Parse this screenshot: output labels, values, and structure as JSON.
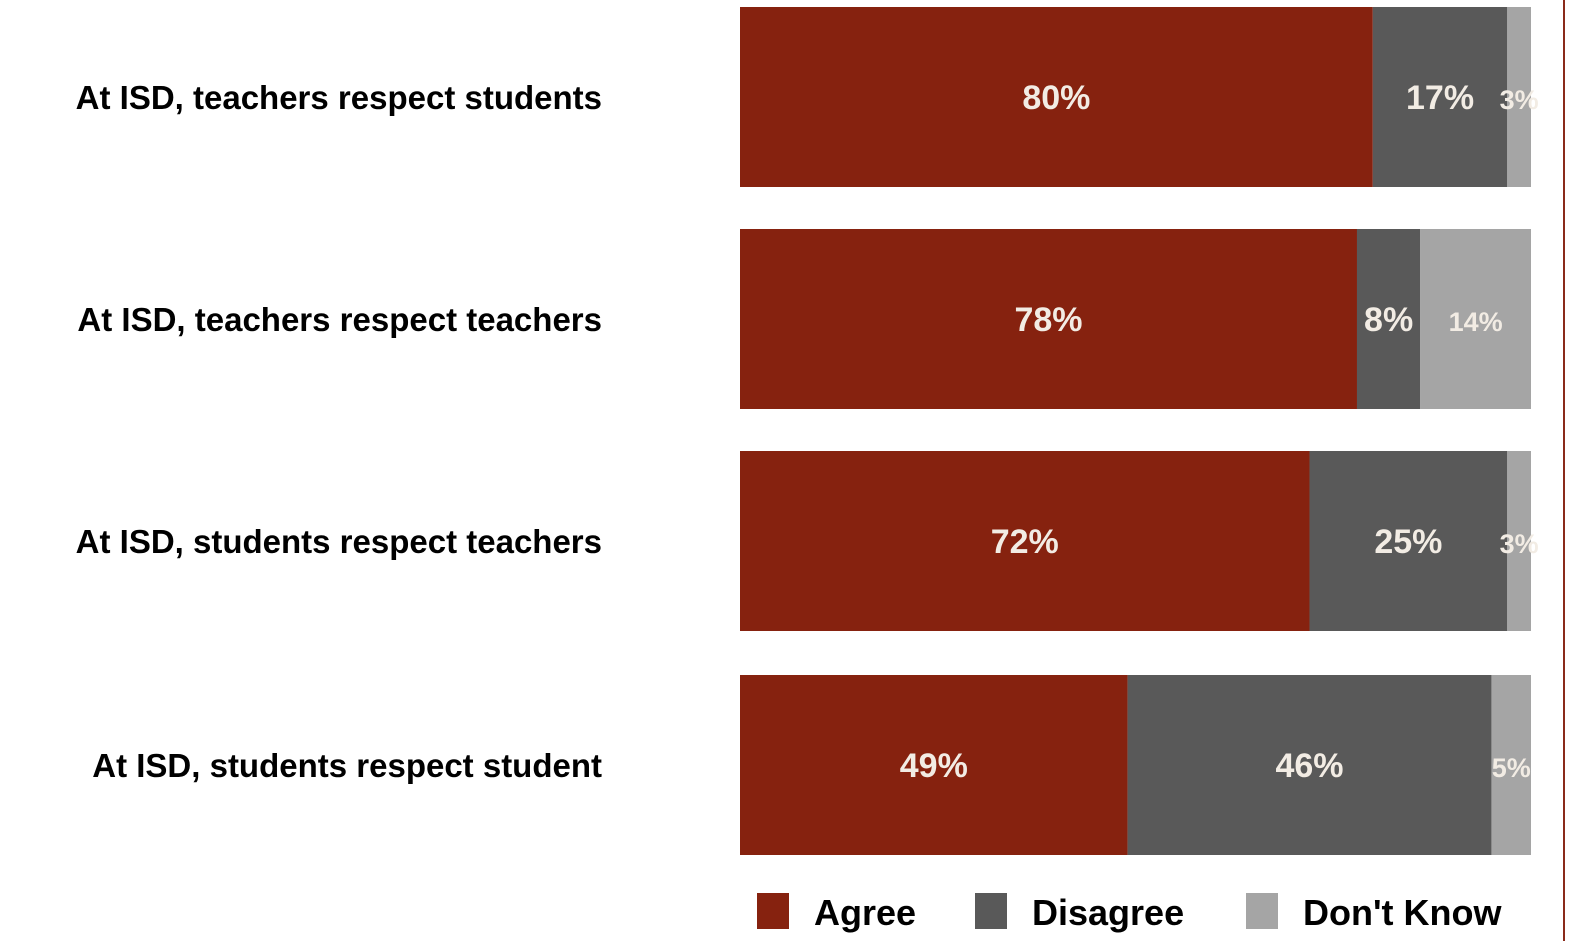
{
  "chart_data": {
    "type": "bar",
    "orientation": "horizontal",
    "stacked": true,
    "categories": [
      "At ISD, teachers respect students",
      "At ISD, teachers respect teachers",
      "At ISD, students respect teachers",
      "At ISD, students respect student"
    ],
    "series": [
      {
        "name": "Agree",
        "color": "#86220f",
        "values": [
          80,
          78,
          72,
          49
        ],
        "labels": [
          "80%",
          "78%",
          "72%",
          "49%"
        ]
      },
      {
        "name": "Disagree",
        "color": "#595959",
        "values": [
          17,
          8,
          25,
          46
        ],
        "labels": [
          "17%",
          "8%",
          "25%",
          "46%"
        ]
      },
      {
        "name": "Don't Know",
        "color": "#a5a5a5",
        "values": [
          3,
          14,
          3,
          5
        ],
        "labels": [
          "3%",
          "14%",
          "3%",
          "5%"
        ]
      }
    ],
    "xlim": [
      0,
      100
    ],
    "legend_position": "bottom",
    "grid": false
  }
}
